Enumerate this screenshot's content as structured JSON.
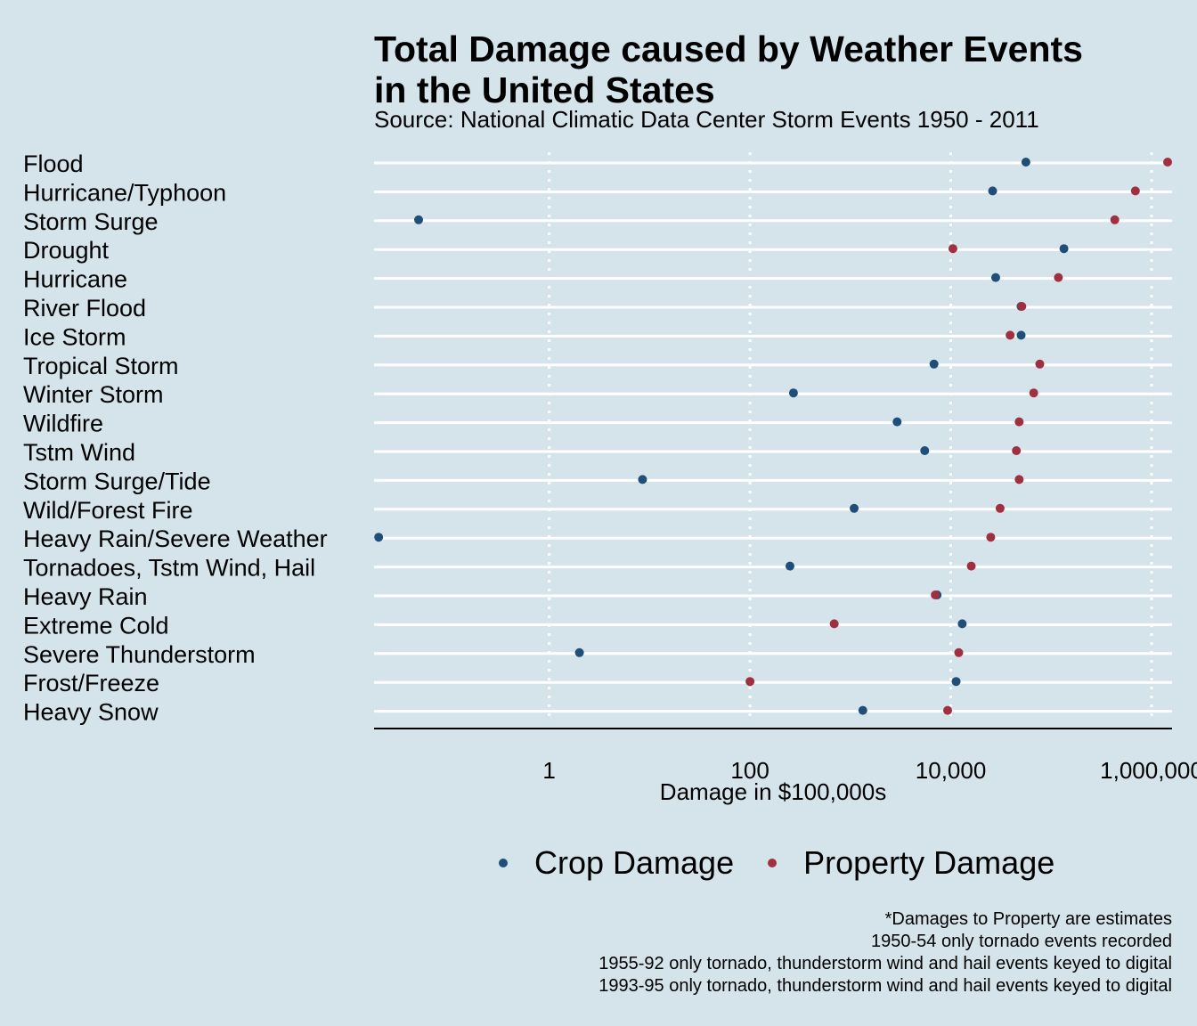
{
  "colors": {
    "background": "#d5e4eb",
    "crop": "#1f4e79",
    "property": "#a03040",
    "gridline": "#ffffff"
  },
  "title_lines": [
    "Total Damage caused by Weather Events",
    "in the United States"
  ],
  "subtitle": "Source: National Climatic Data Center Storm Events 1950 - 2011",
  "legend": {
    "crop_label": "Crop Damage",
    "property_label": "Property Damage"
  },
  "notes": [
    "*Damages to Property are estimates",
    "1950-54 only tornado events recorded",
    "1955-92 only tornado, thunderstorm wind and hail events keyed to digital",
    "1993-95 only tornado, thunderstorm wind and hail events keyed to digital"
  ],
  "chart_data": {
    "type": "scatter",
    "title": "Total Damage caused by Weather Events in the United States",
    "xlabel": "Damage in $100,000s",
    "xscale": "log10",
    "xlim": [
      0.018,
      1600000
    ],
    "xticks": [
      1,
      100,
      10000,
      1000000
    ],
    "xtick_labels": [
      "1",
      "100",
      "10,000",
      "1,000,000"
    ],
    "grid": "horizontal solid, vertical dotted",
    "legend_position": "bottom",
    "categories": [
      "Flood",
      "Hurricane/Typhoon",
      "Storm Surge",
      "Drought",
      "Hurricane",
      "River Flood",
      "Ice Storm",
      "Tropical Storm",
      "Winter Storm",
      "Wildfire",
      "Tstm Wind",
      "Storm Surge/Tide",
      "Wild/Forest Fire",
      "Heavy Rain/Severe Weather",
      "Tornadoes, Tstm Wind, Hail",
      "Heavy Rain",
      "Extreme Cold",
      "Severe Thunderstorm",
      "Frost/Freeze",
      "Heavy Snow"
    ],
    "series": [
      {
        "name": "Crop Damage",
        "values": [
          56000,
          26100,
          0.05,
          134000,
          28000,
          50100,
          50200,
          6800,
          271,
          2920,
          5500,
          8.5,
          1090,
          0.02,
          250,
          7300,
          13000,
          2.0,
          11300,
          1330
        ]
      },
      {
        "name": "Property Damage",
        "values": [
          1446000,
          690000,
          430000,
          10500,
          118000,
          51000,
          39000,
          77000,
          67000,
          48000,
          45000,
          48000,
          31000,
          25000,
          16000,
          7000,
          690,
          12000,
          100,
          9300
        ]
      }
    ]
  }
}
